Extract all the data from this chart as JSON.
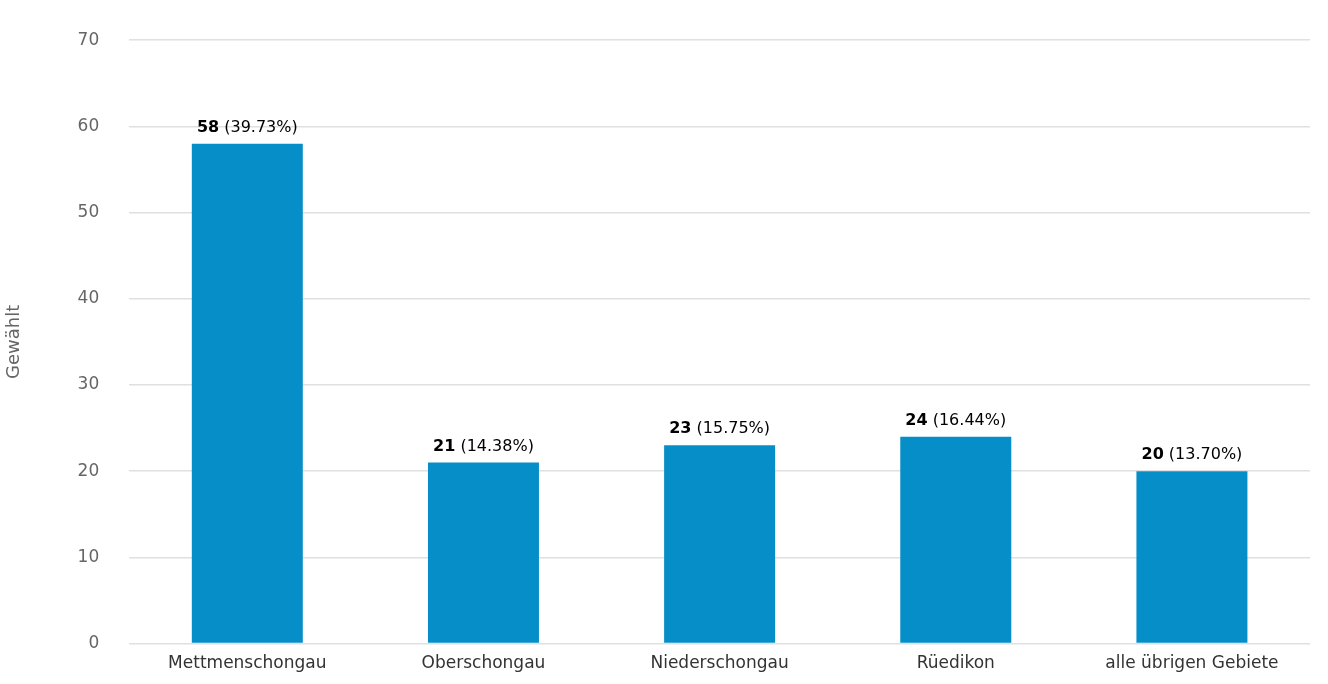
{
  "chart_data": {
    "type": "bar",
    "ylabel": "Gewählt",
    "categories": [
      "Mettmenschongau",
      "Oberschongau",
      "Niederschongau",
      "Rüedikon",
      "alle übrigen Gebiete"
    ],
    "values": [
      58,
      21,
      23,
      24,
      20
    ],
    "value_labels": [
      "58 (39.73%)",
      "21 (14.38%)",
      "23 (15.75%)",
      "24 (16.44%)",
      "20 (13.70%)"
    ],
    "color": "#068ec8",
    "ylim": [
      0,
      70
    ],
    "yticks": [
      0,
      10,
      20,
      30,
      40,
      50,
      60,
      70
    ],
    "grid": "y",
    "legend": false
  }
}
